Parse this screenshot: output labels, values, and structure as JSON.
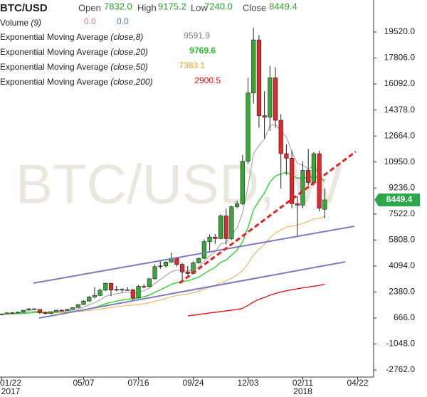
{
  "chart_data": {
    "type": "candlestick",
    "symbol": "BTC/USD",
    "watermark": "BTC/USD, W",
    "header": {
      "open_label": "Open",
      "open": "7832.0",
      "high_label": "High",
      "high": "9175.2",
      "low_label": "Low",
      "low": "7240.0",
      "close_label": "Close",
      "close": "8449.4"
    },
    "volume": {
      "name": "Volume",
      "param": "(9)",
      "readouts": [
        {
          "text": "0.0",
          "color": "#e57373"
        },
        {
          "text": "0.0",
          "color": "#3a7fd5"
        }
      ]
    },
    "up_color": "#35a835",
    "down_color": "#e0272a",
    "categories": [
      "01/22",
      null,
      null,
      null,
      null,
      null,
      null,
      null,
      null,
      null,
      null,
      null,
      null,
      null,
      null,
      "05/07",
      null,
      null,
      null,
      null,
      null,
      null,
      null,
      null,
      null,
      "07/16",
      null,
      null,
      null,
      null,
      null,
      null,
      null,
      null,
      null,
      "09/24",
      null,
      null,
      null,
      null,
      null,
      null,
      null,
      null,
      null,
      "12/03",
      null,
      null,
      null,
      null,
      null,
      null,
      null,
      null,
      null,
      "02/11",
      null,
      null,
      null,
      null,
      null,
      null,
      null,
      null,
      null,
      "04/22"
    ],
    "years": [
      {
        "at": "01/22",
        "label": "2017"
      },
      {
        "at": "02/11",
        "label": "2018"
      }
    ],
    "open": [
      900,
      920,
      1010,
      1000,
      1050,
      1180,
      1270,
      1230,
      1030,
      960,
      1080,
      1180,
      1170,
      1240,
      1350,
      1550,
      1780,
      2050,
      2150,
      2500,
      2950,
      2500,
      2560,
      2500,
      2520,
      1980,
      2750,
      2730,
      3250,
      4050,
      4100,
      4350,
      4600,
      4200,
      3700,
      3600,
      4300,
      4600,
      5700,
      6000,
      5900,
      7400,
      5900,
      8000,
      8200,
      11000,
      15500,
      19000,
      14000,
      13900,
      16500,
      13700,
      11500,
      11200,
      8200,
      8100,
      10400,
      9600,
      11500,
      7832,
      null,
      null,
      null,
      null,
      null,
      null
    ],
    "high": [
      960,
      1030,
      1060,
      1080,
      1200,
      1300,
      1300,
      1250,
      1070,
      1100,
      1200,
      1220,
      1260,
      1360,
      1580,
      1840,
      2100,
      2700,
      2600,
      3000,
      2980,
      2780,
      2620,
      2700,
      2600,
      2850,
      2900,
      3300,
      4200,
      4500,
      4400,
      4980,
      4700,
      4300,
      4100,
      4400,
      4650,
      5850,
      6180,
      6200,
      7500,
      7880,
      8050,
      8400,
      11400,
      16500,
      19800,
      19300,
      15600,
      17300,
      17200,
      14100,
      12100,
      11700,
      8700,
      11000,
      11800,
      11600,
      11700,
      9175.2,
      null,
      null,
      null,
      null,
      null,
      null
    ],
    "low": [
      880,
      900,
      980,
      990,
      1040,
      1150,
      1180,
      940,
      900,
      950,
      1060,
      1150,
      1160,
      1230,
      1340,
      1540,
      1750,
      1960,
      2100,
      2450,
      2100,
      2420,
      2320,
      2480,
      1850,
      1950,
      2620,
      2700,
      3200,
      3900,
      3980,
      4300,
      4050,
      2980,
      3500,
      3550,
      4250,
      4550,
      5100,
      5550,
      5850,
      5500,
      5800,
      7900,
      8100,
      10800,
      14800,
      13200,
      12500,
      13000,
      13200,
      9200,
      10100,
      7900,
      6000,
      7900,
      9400,
      9400,
      7700,
      7240,
      null,
      null,
      null,
      null,
      null,
      null
    ],
    "close": [
      920,
      1010,
      1000,
      1050,
      1180,
      1270,
      1230,
      1030,
      960,
      1080,
      1180,
      1170,
      1240,
      1350,
      1550,
      1780,
      2050,
      2150,
      2500,
      2950,
      2500,
      2560,
      2500,
      2520,
      1980,
      2750,
      2730,
      3250,
      4050,
      4100,
      4350,
      4600,
      4200,
      3700,
      3600,
      4300,
      4600,
      5700,
      6000,
      5900,
      7400,
      5900,
      8000,
      8200,
      11000,
      15500,
      19000,
      14000,
      13900,
      16500,
      13700,
      11500,
      11200,
      8200,
      8100,
      10400,
      9600,
      11500,
      7900,
      8449.4,
      null,
      null,
      null,
      null,
      null,
      null
    ],
    "series": [
      {
        "name": "Exponential Moving Average",
        "params": "(close,8)",
        "last_label": "9591.9",
        "color": "#9a9a9a",
        "label_color": "#808080",
        "values": [
          920,
          940,
          953,
          975,
          1020,
          1075,
          1109,
          1092,
          1063,
          1067,
          1092,
          1109,
          1138,
          1185,
          1266,
          1380,
          1529,
          1667,
          1852,
          2096,
          2186,
          2269,
          2320,
          2364,
          2279,
          2383,
          2460,
          2635,
          2949,
          3204,
          3459,
          3712,
          3820,
          3793,
          3750,
          3872,
          4034,
          4404,
          4758,
          5011,
          5541,
          5620,
          6148,
          6603,
          7579,
          9338,
          11483,
          12043,
          12452,
          13351,
          13429,
          13000,
          12600,
          11622,
          10840,
          10742,
          10488,
          10714,
          10090,
          9592,
          null,
          null,
          null,
          null,
          null,
          null
        ]
      },
      {
        "name": "Exponential Moving Average",
        "params": "(close,20)",
        "last_label": "9769.6",
        "color": "#2bd62b",
        "label_color": "#22bb22",
        "values": [
          920,
          929,
          936,
          947,
          969,
          998,
          1020,
          1021,
          1015,
          1021,
          1036,
          1049,
          1067,
          1094,
          1137,
          1198,
          1279,
          1362,
          1470,
          1611,
          1696,
          1778,
          1847,
          1911,
          1918,
          1997,
          2067,
          2179,
          2357,
          2523,
          2697,
          2878,
          3003,
          3069,
          3120,
          3232,
          3362,
          3584,
          3814,
          4013,
          4335,
          4484,
          4818,
          5138,
          5695,
          6627,
          7802,
          8390,
          8913,
          9634,
          10021,
          10161,
          10260,
          10064,
          9877,
          9926,
          9895,
          10047,
          9843,
          9770,
          null,
          null,
          null,
          null,
          null,
          null
        ]
      },
      {
        "name": "Exponential Moving Average",
        "params": "(close,50)",
        "last_label": "7383.1",
        "color": "#f0a845",
        "label_color": "#e8a030",
        "values": [
          null,
          null,
          null,
          null,
          null,
          null,
          1050,
          1049,
          1046,
          1047,
          1052,
          1057,
          1064,
          1075,
          1094,
          1121,
          1158,
          1197,
          1248,
          1315,
          1362,
          1409,
          1452,
          1494,
          1513,
          1562,
          1608,
          1673,
          1766,
          1857,
          1955,
          2059,
          2144,
          2205,
          2260,
          2340,
          2429,
          2558,
          2693,
          2819,
          2999,
          3113,
          3306,
          3498,
          3792,
          4252,
          4831,
          5190,
          5532,
          5963,
          6266,
          6471,
          6657,
          6717,
          6773,
          6915,
          7022,
          7199,
          7228,
          7383,
          null,
          null,
          null,
          null,
          null,
          null
        ]
      },
      {
        "name": "Exponential Moving Average",
        "params": "(close,200)",
        "last_label": "2900.5",
        "color": "#e01a1a",
        "label_color": "#e01010",
        "values": [
          null,
          null,
          null,
          null,
          null,
          null,
          null,
          null,
          null,
          null,
          null,
          null,
          null,
          null,
          null,
          null,
          null,
          null,
          null,
          null,
          null,
          null,
          null,
          null,
          null,
          null,
          null,
          null,
          null,
          null,
          null,
          null,
          null,
          null,
          800,
          850,
          900,
          950,
          1000,
          1040,
          1090,
          1130,
          1180,
          1230,
          1300,
          1500,
          1720,
          1900,
          2020,
          2170,
          2280,
          2380,
          2460,
          2530,
          2590,
          2650,
          2700,
          2760,
          2810,
          2900,
          null,
          null,
          null,
          null,
          null,
          null
        ]
      }
    ],
    "ylim": [
      -3230,
      21630
    ],
    "yticks": [
      {
        "value": 19520,
        "label": "19520.0"
      },
      {
        "value": 17806,
        "label": "17806.0"
      },
      {
        "value": 16092,
        "label": "16092.0"
      },
      {
        "value": 14378,
        "label": "14378.0"
      },
      {
        "value": 12664,
        "label": "12664.0"
      },
      {
        "value": 10950,
        "label": "10950.0"
      },
      {
        "value": 9236,
        "label": "9236.0"
      },
      {
        "value": 7522,
        "label": "7522.0"
      },
      {
        "value": 5808,
        "label": "5808.0"
      },
      {
        "value": 4094,
        "label": "4094.0"
      },
      {
        "value": 2380,
        "label": "2380.0"
      },
      {
        "value": 666,
        "label": "666.0"
      },
      {
        "value": -1048,
        "label": "-1048.0"
      },
      {
        "value": -2762,
        "label": "-2762.0"
      }
    ],
    "last_price": 8449.4,
    "last_price_color": "#2aa84a",
    "grid": false
  }
}
